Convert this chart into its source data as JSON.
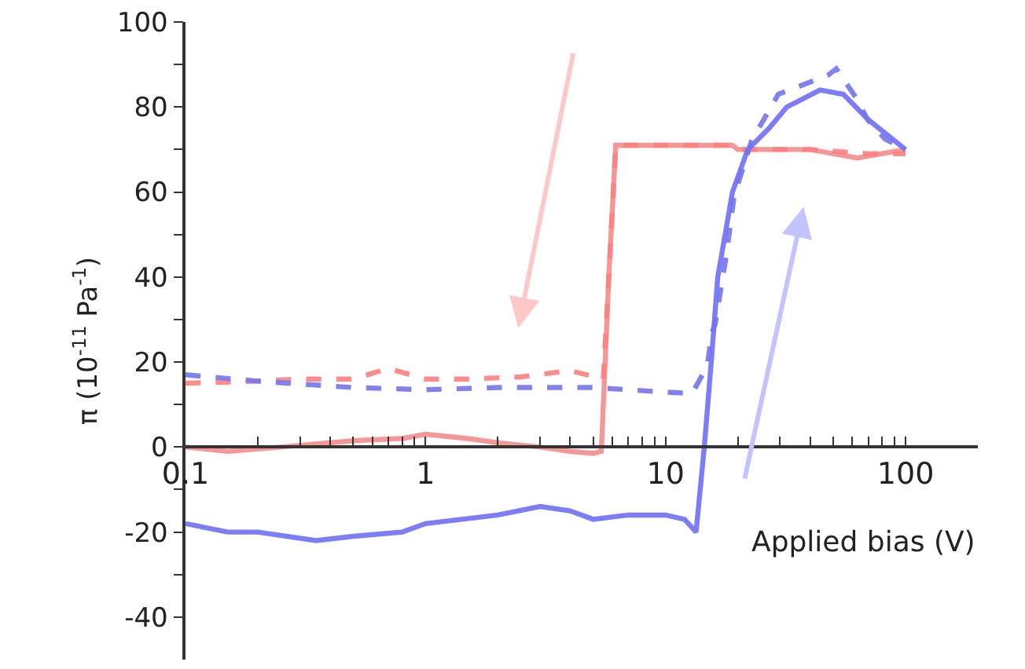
{
  "chart_data": {
    "type": "line",
    "xlabel": "Applied bias (V)",
    "ylabel": "π (10$^{-11}$ Pa$^{-1}$)",
    "log": "x",
    "marker": "none",
    "xlim": [
      0.1,
      200
    ],
    "xticks": [
      {
        "value": 0.1,
        "label": "0.1"
      },
      {
        "value": 0.2,
        "label": null
      },
      {
        "value": 0.3,
        "label": null
      },
      {
        "value": 0.4,
        "label": null
      },
      {
        "value": 0.5,
        "label": null
      },
      {
        "value": 0.6,
        "label": null
      },
      {
        "value": 0.7,
        "label": null
      },
      {
        "value": 0.8,
        "label": null
      },
      {
        "value": 0.9,
        "label": null
      },
      1,
      {
        "value": 2,
        "label": null
      },
      {
        "value": 3,
        "label": null
      },
      {
        "value": 4,
        "label": null
      },
      {
        "value": 5,
        "label": null
      },
      {
        "value": 6,
        "label": null
      },
      {
        "value": 7,
        "label": null
      },
      {
        "value": 8,
        "label": null
      },
      {
        "value": 9,
        "label": null
      },
      10,
      {
        "value": 20,
        "label": null
      },
      {
        "value": 30,
        "label": null
      },
      {
        "value": 40,
        "label": null
      },
      {
        "value": 50,
        "label": null
      },
      {
        "value": 60,
        "label": null
      },
      {
        "value": 70,
        "label": null
      },
      {
        "value": 80,
        "label": null
      },
      {
        "value": 90,
        "label": null
      },
      100
    ],
    "ylim": [
      -50,
      100
    ],
    "yticks": [
      -40,
      {
        "value": -30,
        "label": null
      },
      -20,
      {
        "value": -10,
        "label": null
      },
      0,
      {
        "value": 10,
        "label": null
      },
      20,
      {
        "value": 30,
        "label": null
      },
      40,
      {
        "value": 50,
        "label": null
      },
      60,
      {
        "value": 70,
        "label": null
      },
      80,
      {
        "value": 90,
        "label": null
      },
      100
    ],
    "series": [
      {
        "color": "#f58c8c",
        "line_style": "solid",
        "x": [
          0.1,
          0.15,
          0.25,
          0.5,
          0.8,
          1,
          1.5,
          2,
          3,
          4,
          5,
          5.4,
          5.8,
          6.2,
          10,
          19,
          20,
          40,
          63,
          100
        ],
        "values": [
          0,
          -1,
          0,
          1.5,
          2,
          3,
          2,
          1,
          0,
          -1,
          -1.5,
          -1,
          40,
          71,
          71,
          71,
          70,
          70,
          68,
          70
        ]
      },
      {
        "color": "#ff8080",
        "line_style": "dashed",
        "x": [
          0.1,
          0.2,
          0.3,
          0.5,
          0.7,
          1,
          1.5,
          2.5,
          4,
          5.5,
          5.8,
          6.2,
          10,
          19,
          20,
          40,
          70,
          100
        ],
        "values": [
          15,
          15.5,
          16,
          16,
          18.5,
          16,
          16,
          16.5,
          18,
          16,
          40,
          71,
          71,
          71,
          70,
          70,
          69,
          69
        ]
      },
      {
        "color": "#6f6ff5",
        "line_style": "solid",
        "x": [
          0.1,
          0.15,
          0.2,
          0.35,
          0.5,
          0.8,
          1,
          2,
          3,
          4,
          5,
          7,
          10,
          12,
          13.4,
          14.5,
          15.5,
          16.5,
          19,
          22,
          27,
          32,
          44,
          55,
          70,
          100
        ],
        "values": [
          -18,
          -20,
          -20,
          -22,
          -21,
          -20,
          -18,
          -16,
          -14,
          -15,
          -17,
          -16,
          -16,
          -17,
          -20,
          0,
          20,
          40,
          60,
          70,
          75,
          80,
          84,
          83,
          77,
          70
        ]
      },
      {
        "color": "#7575ee",
        "line_style": "dashed",
        "x": [
          0.1,
          0.2,
          0.5,
          1,
          2,
          5,
          9.5,
          12.9,
          14.9,
          15.6,
          16.1,
          17.9,
          19.3,
          22.8,
          29.5,
          47.6,
          51.4,
          62.5,
          69.5,
          82,
          100
        ],
        "values": [
          17,
          15.5,
          14,
          13.5,
          14,
          14,
          13,
          12.6,
          19,
          27,
          29,
          45,
          59,
          72,
          83,
          87.5,
          89,
          82,
          77,
          72.5,
          70
        ]
      }
    ]
  }
}
